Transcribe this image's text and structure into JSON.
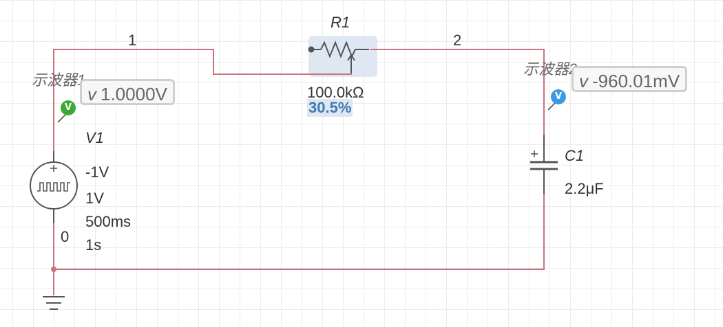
{
  "nets": {
    "n1": "1",
    "n2": "2",
    "n0": "0"
  },
  "r1": {
    "name": "R1",
    "resistance": "100.0kΩ",
    "setting": "30.5%"
  },
  "v1": {
    "name": "V1",
    "low": "-1V",
    "high": "1V",
    "pulse_width": "500ms",
    "period": "1s"
  },
  "c1": {
    "name": "C1",
    "value": "2.2μF"
  },
  "probe1": {
    "name": "示波器1",
    "icon_letter": "V",
    "v_prefix": "v",
    "reading": "1.0000V",
    "color": "#3aaa35"
  },
  "probe2": {
    "name": "示波器2",
    "icon_letter": "V",
    "v_prefix": "v",
    "reading": "-960.01mV",
    "color": "#3a9be0"
  },
  "colors": {
    "wire": "#c9727e",
    "component": "#555555",
    "selection": "#dfe7f3"
  }
}
